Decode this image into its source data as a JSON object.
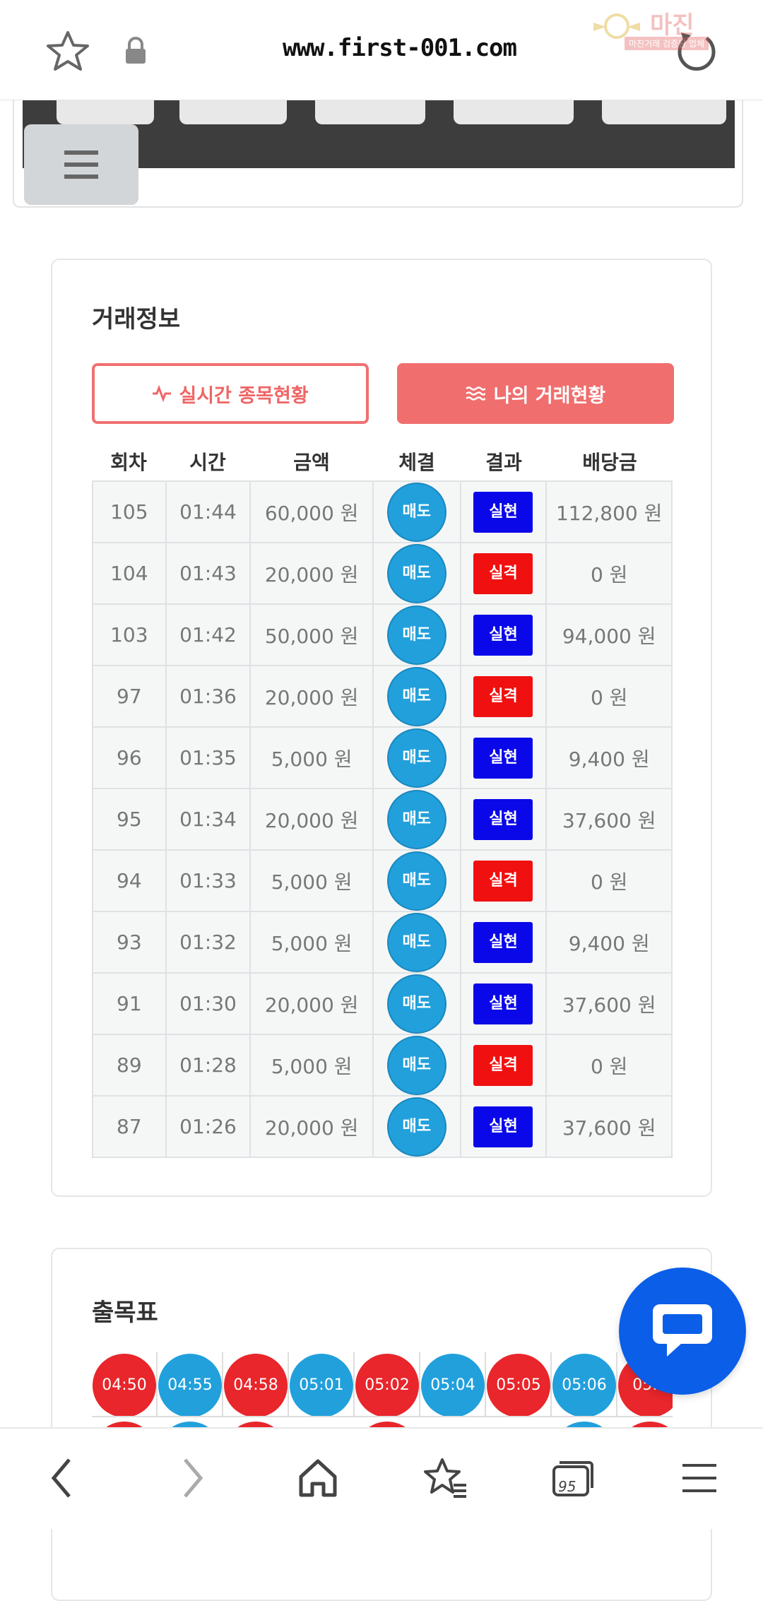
{
  "browser": {
    "url": "www.first-001.com",
    "tab_count": "95",
    "watermark_title": "마진",
    "watermark_sub": "마진거래 검증된 업체"
  },
  "trade_card": {
    "title": "거래정보",
    "btn_realtime": "실시간 종목현황",
    "btn_mytrades": "나의 거래현황",
    "columns": [
      "회차",
      "시간",
      "금액",
      "체결",
      "결과",
      "배당금"
    ],
    "rows": [
      {
        "round": "105",
        "time": "01:44",
        "amount": "60,000 원",
        "exec": "매도",
        "result": "실현",
        "payout": "112,800 원"
      },
      {
        "round": "104",
        "time": "01:43",
        "amount": "20,000 원",
        "exec": "매도",
        "result": "실격",
        "payout": "0 원"
      },
      {
        "round": "103",
        "time": "01:42",
        "amount": "50,000 원",
        "exec": "매도",
        "result": "실현",
        "payout": "94,000 원"
      },
      {
        "round": "97",
        "time": "01:36",
        "amount": "20,000 원",
        "exec": "매도",
        "result": "실격",
        "payout": "0 원"
      },
      {
        "round": "96",
        "time": "01:35",
        "amount": "5,000 원",
        "exec": "매도",
        "result": "실현",
        "payout": "9,400 원"
      },
      {
        "round": "95",
        "time": "01:34",
        "amount": "20,000 원",
        "exec": "매도",
        "result": "실현",
        "payout": "37,600 원"
      },
      {
        "round": "94",
        "time": "01:33",
        "amount": "5,000 원",
        "exec": "매도",
        "result": "실격",
        "payout": "0 원"
      },
      {
        "round": "93",
        "time": "01:32",
        "amount": "5,000 원",
        "exec": "매도",
        "result": "실현",
        "payout": "9,400 원"
      },
      {
        "round": "91",
        "time": "01:30",
        "amount": "20,000 원",
        "exec": "매도",
        "result": "실현",
        "payout": "37,600 원"
      },
      {
        "round": "89",
        "time": "01:28",
        "amount": "5,000 원",
        "exec": "매도",
        "result": "실격",
        "payout": "0 원"
      },
      {
        "round": "87",
        "time": "01:26",
        "amount": "20,000 원",
        "exec": "매도",
        "result": "실현",
        "payout": "37,600 원"
      }
    ]
  },
  "chart_card": {
    "title": "출목표",
    "cells": [
      {
        "label": "04:50",
        "color": "red"
      },
      {
        "label": "04:55",
        "color": "blue"
      },
      {
        "label": "04:58",
        "color": "red"
      },
      {
        "label": "05:01",
        "color": "blue"
      },
      {
        "label": "05:02",
        "color": "red"
      },
      {
        "label": "05:04",
        "color": "blue"
      },
      {
        "label": "05:05",
        "color": "red"
      },
      {
        "label": "05:06",
        "color": "blue"
      },
      {
        "label": "05:0",
        "color": "red"
      }
    ],
    "row2_colors": [
      "red",
      "blue",
      "red",
      "none",
      "red",
      "none",
      "none",
      "blue",
      "red"
    ]
  },
  "colors": {
    "accent": "#f06e6e",
    "sell": "#21a0dc",
    "win": "#0a08e8",
    "lose": "#f01010",
    "chat": "#0a5ee8"
  }
}
